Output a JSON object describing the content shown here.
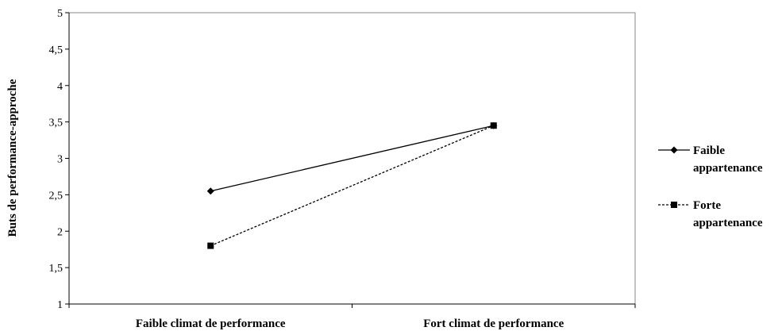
{
  "chart_data": {
    "type": "line",
    "categories": [
      "Faible climat de performance",
      "Fort climat de performance"
    ],
    "ylabel": "Buts de performance-approche",
    "xlabel": "",
    "ylim": [
      1,
      5
    ],
    "yticks": [
      "1",
      "1,5",
      "2",
      "2,5",
      "3",
      "3,5",
      "4",
      "4,5",
      "5"
    ],
    "grid": false,
    "legend_position": "right",
    "series": [
      {
        "name": "Faible appartenance",
        "legend_lines": [
          "Faible",
          "appartenance"
        ],
        "values": [
          2.55,
          3.45
        ],
        "marker": "diamond",
        "line_style": "solid",
        "color": "#000000"
      },
      {
        "name": "Forte appartenance",
        "legend_lines": [
          "Forte",
          "appartenance"
        ],
        "values": [
          1.8,
          3.45
        ],
        "marker": "square",
        "line_style": "dashed",
        "color": "#000000"
      }
    ]
  }
}
